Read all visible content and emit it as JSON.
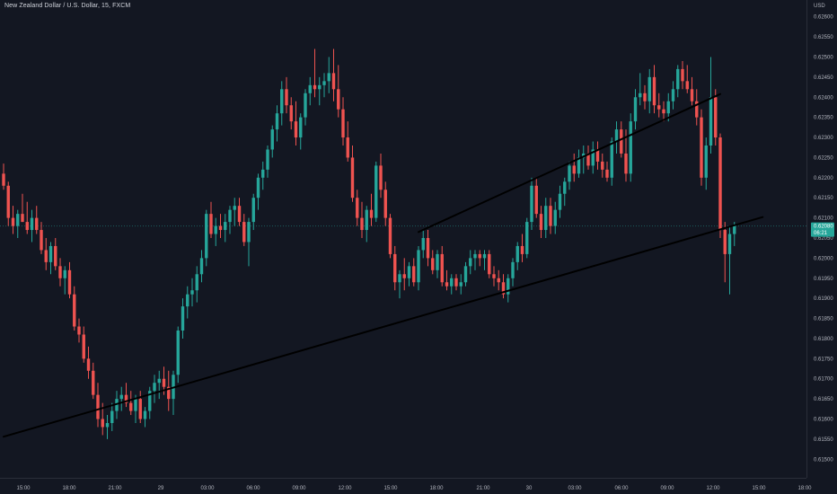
{
  "header": {
    "symbol_title": "New Zealand Dollar / U.S. Dollar, 15, FXCM",
    "currency": "USD"
  },
  "colors": {
    "background": "#131722",
    "up": "#26a69a",
    "down": "#ef5350",
    "trendline": "#000000",
    "price_tag": "#26a69a"
  },
  "chart_data": {
    "type": "candlestick",
    "y_axis": {
      "ylim": [
        0.61475,
        0.62625
      ],
      "ticks": [
        "0.62600",
        "0.62550",
        "0.62500",
        "0.62450",
        "0.62400",
        "0.62350",
        "0.62300",
        "0.62250",
        "0.62200",
        "0.62150",
        "0.62100",
        "0.62050",
        "0.62000",
        "0.61950",
        "0.61900",
        "0.61850",
        "0.61800",
        "0.61750",
        "0.61700",
        "0.61650",
        "0.61600",
        "0.61550",
        "0.61500"
      ]
    },
    "x_axis": {
      "ticks": [
        "15:00",
        "18:00",
        "21:00",
        "29",
        "03:00",
        "06:00",
        "09:00",
        "12:00",
        "15:00",
        "18:00",
        "21:00",
        "30",
        "03:00",
        "06:00",
        "09:00",
        "12:00",
        "15:00",
        "18:00"
      ]
    },
    "last_price": {
      "value": 0.6208,
      "label": "0.62080",
      "countdown": "06:21"
    },
    "trendlines": [
      {
        "from": [
          0,
          0.61556
        ],
        "to": [
          161,
          0.62102
        ]
      },
      {
        "from": [
          88,
          0.62065
        ],
        "to": [
          152,
          0.62408
        ]
      }
    ],
    "candles": [
      {
        "o": 0.6221,
        "h": 0.62235,
        "l": 0.6217,
        "c": 0.6218
      },
      {
        "o": 0.6218,
        "h": 0.6219,
        "l": 0.6208,
        "c": 0.621
      },
      {
        "o": 0.621,
        "h": 0.6213,
        "l": 0.6206,
        "c": 0.6208
      },
      {
        "o": 0.6208,
        "h": 0.6212,
        "l": 0.6205,
        "c": 0.6211
      },
      {
        "o": 0.6211,
        "h": 0.6216,
        "l": 0.6209,
        "c": 0.6209
      },
      {
        "o": 0.6209,
        "h": 0.6214,
        "l": 0.6206,
        "c": 0.6207
      },
      {
        "o": 0.6207,
        "h": 0.6212,
        "l": 0.6204,
        "c": 0.621
      },
      {
        "o": 0.621,
        "h": 0.6213,
        "l": 0.6206,
        "c": 0.6207
      },
      {
        "o": 0.6207,
        "h": 0.6209,
        "l": 0.6201,
        "c": 0.6202
      },
      {
        "o": 0.6202,
        "h": 0.6205,
        "l": 0.6197,
        "c": 0.6199
      },
      {
        "o": 0.6199,
        "h": 0.6204,
        "l": 0.6196,
        "c": 0.6203
      },
      {
        "o": 0.6203,
        "h": 0.6205,
        "l": 0.6197,
        "c": 0.6198
      },
      {
        "o": 0.6198,
        "h": 0.62,
        "l": 0.6193,
        "c": 0.6195
      },
      {
        "o": 0.6195,
        "h": 0.6198,
        "l": 0.6191,
        "c": 0.6197
      },
      {
        "o": 0.6197,
        "h": 0.6199,
        "l": 0.619,
        "c": 0.6191
      },
      {
        "o": 0.6191,
        "h": 0.6193,
        "l": 0.6182,
        "c": 0.6183
      },
      {
        "o": 0.6183,
        "h": 0.6185,
        "l": 0.6179,
        "c": 0.6181
      },
      {
        "o": 0.6181,
        "h": 0.6183,
        "l": 0.6174,
        "c": 0.6175
      },
      {
        "o": 0.6175,
        "h": 0.6178,
        "l": 0.617,
        "c": 0.6172
      },
      {
        "o": 0.6172,
        "h": 0.6174,
        "l": 0.6165,
        "c": 0.6166
      },
      {
        "o": 0.6166,
        "h": 0.6169,
        "l": 0.6158,
        "c": 0.616
      },
      {
        "o": 0.616,
        "h": 0.6164,
        "l": 0.6156,
        "c": 0.6158
      },
      {
        "o": 0.6158,
        "h": 0.6161,
        "l": 0.6155,
        "c": 0.6159
      },
      {
        "o": 0.6159,
        "h": 0.6164,
        "l": 0.6157,
        "c": 0.6162
      },
      {
        "o": 0.6162,
        "h": 0.6167,
        "l": 0.616,
        "c": 0.6165
      },
      {
        "o": 0.6165,
        "h": 0.6168,
        "l": 0.6162,
        "c": 0.6166
      },
      {
        "o": 0.6166,
        "h": 0.6169,
        "l": 0.6163,
        "c": 0.6164
      },
      {
        "o": 0.6164,
        "h": 0.6167,
        "l": 0.6161,
        "c": 0.6162
      },
      {
        "o": 0.6162,
        "h": 0.6166,
        "l": 0.6159,
        "c": 0.6165
      },
      {
        "o": 0.6165,
        "h": 0.6167,
        "l": 0.6159,
        "c": 0.616
      },
      {
        "o": 0.616,
        "h": 0.6163,
        "l": 0.6158,
        "c": 0.6162
      },
      {
        "o": 0.6162,
        "h": 0.6168,
        "l": 0.616,
        "c": 0.6167
      },
      {
        "o": 0.6167,
        "h": 0.6171,
        "l": 0.6164,
        "c": 0.6169
      },
      {
        "o": 0.6169,
        "h": 0.6172,
        "l": 0.6165,
        "c": 0.617
      },
      {
        "o": 0.617,
        "h": 0.6173,
        "l": 0.6166,
        "c": 0.6168
      },
      {
        "o": 0.6168,
        "h": 0.6172,
        "l": 0.6162,
        "c": 0.6165
      },
      {
        "o": 0.6165,
        "h": 0.6172,
        "l": 0.6161,
        "c": 0.6171
      },
      {
        "o": 0.6171,
        "h": 0.6183,
        "l": 0.6169,
        "c": 0.6182
      },
      {
        "o": 0.6182,
        "h": 0.619,
        "l": 0.618,
        "c": 0.6188
      },
      {
        "o": 0.6188,
        "h": 0.6193,
        "l": 0.6185,
        "c": 0.6191
      },
      {
        "o": 0.6191,
        "h": 0.6195,
        "l": 0.6188,
        "c": 0.6192
      },
      {
        "o": 0.6192,
        "h": 0.6198,
        "l": 0.6189,
        "c": 0.6196
      },
      {
        "o": 0.6196,
        "h": 0.6202,
        "l": 0.6194,
        "c": 0.62
      },
      {
        "o": 0.62,
        "h": 0.6212,
        "l": 0.6198,
        "c": 0.6211
      },
      {
        "o": 0.6211,
        "h": 0.6214,
        "l": 0.6205,
        "c": 0.6206
      },
      {
        "o": 0.6206,
        "h": 0.621,
        "l": 0.6203,
        "c": 0.6208
      },
      {
        "o": 0.6208,
        "h": 0.6211,
        "l": 0.6205,
        "c": 0.6207
      },
      {
        "o": 0.6207,
        "h": 0.6211,
        "l": 0.6204,
        "c": 0.6209
      },
      {
        "o": 0.6209,
        "h": 0.6213,
        "l": 0.6206,
        "c": 0.6212
      },
      {
        "o": 0.6212,
        "h": 0.6215,
        "l": 0.6208,
        "c": 0.6213
      },
      {
        "o": 0.6213,
        "h": 0.6215,
        "l": 0.6208,
        "c": 0.6209
      },
      {
        "o": 0.6209,
        "h": 0.6211,
        "l": 0.6203,
        "c": 0.6204
      },
      {
        "o": 0.6204,
        "h": 0.621,
        "l": 0.6198,
        "c": 0.6209
      },
      {
        "o": 0.6209,
        "h": 0.6216,
        "l": 0.6207,
        "c": 0.6215
      },
      {
        "o": 0.6215,
        "h": 0.6221,
        "l": 0.6212,
        "c": 0.622
      },
      {
        "o": 0.622,
        "h": 0.6224,
        "l": 0.6217,
        "c": 0.6222
      },
      {
        "o": 0.6222,
        "h": 0.6228,
        "l": 0.622,
        "c": 0.6227
      },
      {
        "o": 0.6227,
        "h": 0.6233,
        "l": 0.6225,
        "c": 0.6232
      },
      {
        "o": 0.6232,
        "h": 0.6238,
        "l": 0.6229,
        "c": 0.6236
      },
      {
        "o": 0.6236,
        "h": 0.6244,
        "l": 0.6233,
        "c": 0.6242
      },
      {
        "o": 0.6242,
        "h": 0.6245,
        "l": 0.6236,
        "c": 0.6238
      },
      {
        "o": 0.6238,
        "h": 0.624,
        "l": 0.6232,
        "c": 0.6234
      },
      {
        "o": 0.6234,
        "h": 0.6239,
        "l": 0.6228,
        "c": 0.623
      },
      {
        "o": 0.623,
        "h": 0.6236,
        "l": 0.6227,
        "c": 0.6235
      },
      {
        "o": 0.6235,
        "h": 0.6242,
        "l": 0.6233,
        "c": 0.6241
      },
      {
        "o": 0.6241,
        "h": 0.6245,
        "l": 0.6238,
        "c": 0.6243
      },
      {
        "o": 0.6243,
        "h": 0.6252,
        "l": 0.624,
        "c": 0.6242
      },
      {
        "o": 0.6242,
        "h": 0.6245,
        "l": 0.6238,
        "c": 0.6243
      },
      {
        "o": 0.6243,
        "h": 0.6246,
        "l": 0.624,
        "c": 0.6244
      },
      {
        "o": 0.6244,
        "h": 0.625,
        "l": 0.6241,
        "c": 0.6246
      },
      {
        "o": 0.6246,
        "h": 0.6252,
        "l": 0.6239,
        "c": 0.6242
      },
      {
        "o": 0.6242,
        "h": 0.6248,
        "l": 0.6235,
        "c": 0.6237
      },
      {
        "o": 0.6237,
        "h": 0.624,
        "l": 0.6228,
        "c": 0.623
      },
      {
        "o": 0.623,
        "h": 0.6234,
        "l": 0.6224,
        "c": 0.6225
      },
      {
        "o": 0.6225,
        "h": 0.6228,
        "l": 0.6214,
        "c": 0.6215
      },
      {
        "o": 0.6215,
        "h": 0.6217,
        "l": 0.6208,
        "c": 0.621
      },
      {
        "o": 0.621,
        "h": 0.6214,
        "l": 0.6205,
        "c": 0.6207
      },
      {
        "o": 0.6207,
        "h": 0.6213,
        "l": 0.6204,
        "c": 0.6212
      },
      {
        "o": 0.6212,
        "h": 0.6216,
        "l": 0.6208,
        "c": 0.621
      },
      {
        "o": 0.621,
        "h": 0.6224,
        "l": 0.6209,
        "c": 0.6223
      },
      {
        "o": 0.6223,
        "h": 0.6226,
        "l": 0.6215,
        "c": 0.6217
      },
      {
        "o": 0.6217,
        "h": 0.6219,
        "l": 0.6208,
        "c": 0.621
      },
      {
        "o": 0.621,
        "h": 0.6211,
        "l": 0.62,
        "c": 0.6201
      },
      {
        "o": 0.6201,
        "h": 0.6203,
        "l": 0.6192,
        "c": 0.6194
      },
      {
        "o": 0.6194,
        "h": 0.6197,
        "l": 0.619,
        "c": 0.6196
      },
      {
        "o": 0.6196,
        "h": 0.62,
        "l": 0.6192,
        "c": 0.6195
      },
      {
        "o": 0.6195,
        "h": 0.6199,
        "l": 0.6193,
        "c": 0.6198
      },
      {
        "o": 0.6198,
        "h": 0.62,
        "l": 0.6193,
        "c": 0.6194
      },
      {
        "o": 0.6194,
        "h": 0.6203,
        "l": 0.6192,
        "c": 0.6202
      },
      {
        "o": 0.6202,
        "h": 0.6207,
        "l": 0.62,
        "c": 0.6205
      },
      {
        "o": 0.6205,
        "h": 0.6207,
        "l": 0.6198,
        "c": 0.62
      },
      {
        "o": 0.62,
        "h": 0.6202,
        "l": 0.6196,
        "c": 0.6197
      },
      {
        "o": 0.6197,
        "h": 0.6202,
        "l": 0.6195,
        "c": 0.6201
      },
      {
        "o": 0.6201,
        "h": 0.6203,
        "l": 0.6193,
        "c": 0.6194
      },
      {
        "o": 0.6194,
        "h": 0.6197,
        "l": 0.6192,
        "c": 0.6193
      },
      {
        "o": 0.6193,
        "h": 0.6196,
        "l": 0.6191,
        "c": 0.6195
      },
      {
        "o": 0.6195,
        "h": 0.6196,
        "l": 0.6192,
        "c": 0.6193
      },
      {
        "o": 0.6193,
        "h": 0.6196,
        "l": 0.6191,
        "c": 0.6194
      },
      {
        "o": 0.6194,
        "h": 0.6199,
        "l": 0.6193,
        "c": 0.6198
      },
      {
        "o": 0.6198,
        "h": 0.6202,
        "l": 0.6196,
        "c": 0.62
      },
      {
        "o": 0.62,
        "h": 0.6202,
        "l": 0.6197,
        "c": 0.6201
      },
      {
        "o": 0.6201,
        "h": 0.6202,
        "l": 0.6198,
        "c": 0.62
      },
      {
        "o": 0.62,
        "h": 0.6202,
        "l": 0.6197,
        "c": 0.6201
      },
      {
        "o": 0.6201,
        "h": 0.6202,
        "l": 0.6195,
        "c": 0.6196
      },
      {
        "o": 0.6196,
        "h": 0.6198,
        "l": 0.6193,
        "c": 0.6195
      },
      {
        "o": 0.6195,
        "h": 0.6197,
        "l": 0.6192,
        "c": 0.6194
      },
      {
        "o": 0.6194,
        "h": 0.6196,
        "l": 0.619,
        "c": 0.6191
      },
      {
        "o": 0.6191,
        "h": 0.6196,
        "l": 0.6189,
        "c": 0.6195
      },
      {
        "o": 0.6195,
        "h": 0.62,
        "l": 0.6193,
        "c": 0.6199
      },
      {
        "o": 0.6199,
        "h": 0.6204,
        "l": 0.6197,
        "c": 0.6203
      },
      {
        "o": 0.6203,
        "h": 0.6206,
        "l": 0.6199,
        "c": 0.6201
      },
      {
        "o": 0.6201,
        "h": 0.621,
        "l": 0.62,
        "c": 0.6209
      },
      {
        "o": 0.6209,
        "h": 0.622,
        "l": 0.6207,
        "c": 0.6218
      },
      {
        "o": 0.6218,
        "h": 0.622,
        "l": 0.621,
        "c": 0.6211
      },
      {
        "o": 0.6211,
        "h": 0.6213,
        "l": 0.6205,
        "c": 0.6207
      },
      {
        "o": 0.6207,
        "h": 0.6215,
        "l": 0.6205,
        "c": 0.6213
      },
      {
        "o": 0.6213,
        "h": 0.6215,
        "l": 0.6206,
        "c": 0.6208
      },
      {
        "o": 0.6208,
        "h": 0.6214,
        "l": 0.6206,
        "c": 0.6212
      },
      {
        "o": 0.6212,
        "h": 0.6218,
        "l": 0.621,
        "c": 0.6216
      },
      {
        "o": 0.6216,
        "h": 0.622,
        "l": 0.6213,
        "c": 0.6219
      },
      {
        "o": 0.6219,
        "h": 0.6224,
        "l": 0.6217,
        "c": 0.6223
      },
      {
        "o": 0.6223,
        "h": 0.6226,
        "l": 0.6219,
        "c": 0.6221
      },
      {
        "o": 0.6221,
        "h": 0.6227,
        "l": 0.622,
        "c": 0.6225
      },
      {
        "o": 0.6225,
        "h": 0.6228,
        "l": 0.6221,
        "c": 0.6226
      },
      {
        "o": 0.6226,
        "h": 0.6228,
        "l": 0.6222,
        "c": 0.6223
      },
      {
        "o": 0.6223,
        "h": 0.6229,
        "l": 0.6221,
        "c": 0.6227
      },
      {
        "o": 0.6227,
        "h": 0.6229,
        "l": 0.6222,
        "c": 0.6224
      },
      {
        "o": 0.6224,
        "h": 0.6226,
        "l": 0.622,
        "c": 0.6222
      },
      {
        "o": 0.6222,
        "h": 0.6224,
        "l": 0.6219,
        "c": 0.622
      },
      {
        "o": 0.622,
        "h": 0.623,
        "l": 0.6218,
        "c": 0.6229
      },
      {
        "o": 0.6229,
        "h": 0.6234,
        "l": 0.6226,
        "c": 0.6232
      },
      {
        "o": 0.6232,
        "h": 0.6234,
        "l": 0.6225,
        "c": 0.6226
      },
      {
        "o": 0.6226,
        "h": 0.6232,
        "l": 0.6219,
        "c": 0.6221
      },
      {
        "o": 0.6221,
        "h": 0.6236,
        "l": 0.6219,
        "c": 0.6234
      },
      {
        "o": 0.6234,
        "h": 0.6242,
        "l": 0.6232,
        "c": 0.624
      },
      {
        "o": 0.624,
        "h": 0.6246,
        "l": 0.6238,
        "c": 0.6241
      },
      {
        "o": 0.6241,
        "h": 0.6243,
        "l": 0.6237,
        "c": 0.6239
      },
      {
        "o": 0.6239,
        "h": 0.6247,
        "l": 0.6236,
        "c": 0.6245
      },
      {
        "o": 0.6245,
        "h": 0.6248,
        "l": 0.6236,
        "c": 0.6238
      },
      {
        "o": 0.6238,
        "h": 0.6241,
        "l": 0.6235,
        "c": 0.6237
      },
      {
        "o": 0.6237,
        "h": 0.6239,
        "l": 0.6234,
        "c": 0.6236
      },
      {
        "o": 0.6236,
        "h": 0.6241,
        "l": 0.6234,
        "c": 0.6239
      },
      {
        "o": 0.6239,
        "h": 0.6244,
        "l": 0.6237,
        "c": 0.6242
      },
      {
        "o": 0.6242,
        "h": 0.6248,
        "l": 0.624,
        "c": 0.6247
      },
      {
        "o": 0.6247,
        "h": 0.6249,
        "l": 0.6242,
        "c": 0.6244
      },
      {
        "o": 0.6244,
        "h": 0.6248,
        "l": 0.6241,
        "c": 0.6242
      },
      {
        "o": 0.6242,
        "h": 0.6245,
        "l": 0.6238,
        "c": 0.6239
      },
      {
        "o": 0.6239,
        "h": 0.6242,
        "l": 0.6233,
        "c": 0.6235
      },
      {
        "o": 0.6235,
        "h": 0.6237,
        "l": 0.6218,
        "c": 0.622
      },
      {
        "o": 0.622,
        "h": 0.623,
        "l": 0.6217,
        "c": 0.6228
      },
      {
        "o": 0.6228,
        "h": 0.625,
        "l": 0.6226,
        "c": 0.624
      },
      {
        "o": 0.624,
        "h": 0.6242,
        "l": 0.6228,
        "c": 0.623
      },
      {
        "o": 0.623,
        "h": 0.6231,
        "l": 0.6205,
        "c": 0.6207
      },
      {
        "o": 0.6207,
        "h": 0.6209,
        "l": 0.6194,
        "c": 0.6201
      },
      {
        "o": 0.6201,
        "h": 0.6208,
        "l": 0.6191,
        "c": 0.6206
      },
      {
        "o": 0.6206,
        "h": 0.6209,
        "l": 0.6203,
        "c": 0.6208
      }
    ]
  }
}
